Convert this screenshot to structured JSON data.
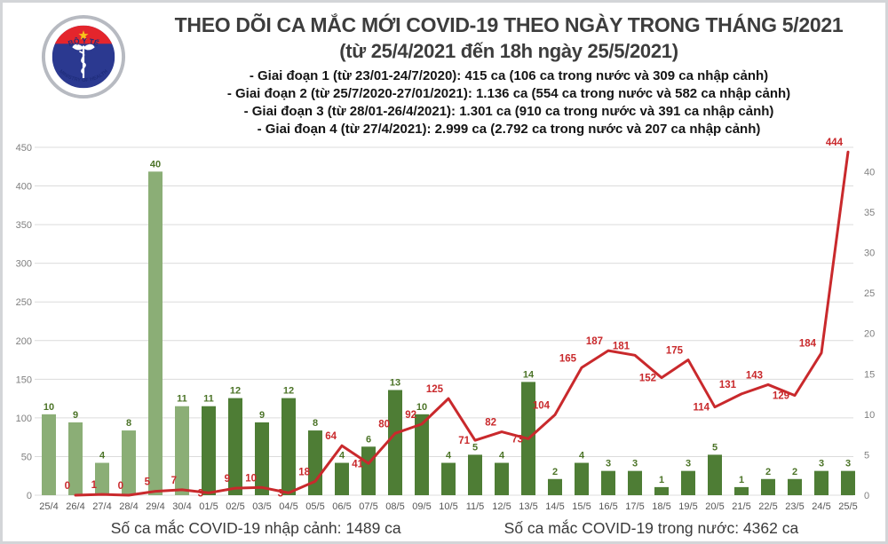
{
  "header": {
    "title_line1": "THEO DÕI CA MẮC MỚI COVID-19 THEO NGÀY TRONG THÁNG 5/2021",
    "title_line2": "(từ 25/4/2021 đến 18h ngày 25/5/2021)",
    "bullets": [
      "- Giai đoạn 1 (từ 23/01-24/7/2020): 415 ca (106 ca trong nước và 309 ca nhập cảnh)",
      "- Giai đoạn 2 (từ 25/7/2020-27/01/2021): 1.136 ca (554 ca trong nước và 582 ca nhập cảnh)",
      "- Giai đoạn 3 (từ 28/01-26/4/2021): 1.301 ca (910 ca trong nước và 391 ca nhập cảnh)",
      "- Giai đoạn 4 (từ 27/4/2021): 2.999 ca (2.792 ca trong nước và 207 ca nhập cảnh)"
    ]
  },
  "logo": {
    "top_text": "BỘ Y TẾ",
    "bottom_text": "MINISTRY OF HEALTH",
    "colors": {
      "ring": "#b7bac1",
      "navy": "#2b3990",
      "red": "#e4252c",
      "star": "#f7c31a",
      "text": "#1f2d7b"
    }
  },
  "chart_data": {
    "type": "bar+line",
    "title": "Ca mắc mới COVID-19 theo ngày trong tháng 5/2021",
    "categories": [
      "25/4",
      "26/4",
      "27/4",
      "28/4",
      "29/4",
      "30/4",
      "01/5",
      "02/5",
      "03/5",
      "04/5",
      "05/5",
      "06/5",
      "07/5",
      "08/5",
      "09/5",
      "10/5",
      "11/5",
      "12/5",
      "13/5",
      "14/5",
      "15/5",
      "16/5",
      "17/5",
      "18/5",
      "19/5",
      "20/5",
      "21/5",
      "22/5",
      "23/5",
      "24/5",
      "25/5"
    ],
    "series": [
      {
        "name": "Số ca mắc COVID-19 nhập cảnh",
        "kind": "bar",
        "axis": "right",
        "values": [
          10,
          9,
          4,
          8,
          40,
          11,
          11,
          12,
          9,
          12,
          8,
          4,
          6,
          13,
          10,
          4,
          5,
          4,
          14,
          2,
          4,
          3,
          3,
          1,
          3,
          5,
          1,
          2,
          2,
          3,
          3
        ]
      },
      {
        "name": "Số ca mắc COVID-19 trong nước",
        "kind": "line",
        "axis": "left",
        "values": [
          null,
          0,
          1,
          0,
          5,
          7,
          3,
          9,
          10,
          3,
          18,
          64,
          41,
          80,
          92,
          125,
          71,
          82,
          73,
          104,
          165,
          187,
          181,
          152,
          175,
          114,
          131,
          143,
          129,
          184,
          444
        ]
      }
    ],
    "left_axis": {
      "min": 0,
      "max": 450,
      "step": 50,
      "ticks": [
        0,
        50,
        100,
        150,
        200,
        250,
        300,
        350,
        400,
        450
      ]
    },
    "right_axis": {
      "min": 0,
      "max": 43,
      "ticks": [
        0,
        5,
        10,
        15,
        20,
        25,
        30,
        35,
        40
      ]
    },
    "grid": true,
    "legend_position": "bottom",
    "bar_light_count": 6,
    "line_label_side": [
      6,
      9,
      12,
      16,
      18,
      23,
      25,
      28
    ],
    "colors": {
      "bar_april": "#8bae76",
      "bar_may": "#4e7d35",
      "bar_label": "#4c7428",
      "line": "#c9292c",
      "grid": "#dcdcdc"
    }
  },
  "legend": [
    {
      "label": "Số ca mắc COVID-19 nhập cảnh: 1489 ca",
      "swatch": "green-square"
    },
    {
      "label": "Số ca mắc COVID-19 trong nước: 4362 ca",
      "swatch": "red-line"
    }
  ]
}
